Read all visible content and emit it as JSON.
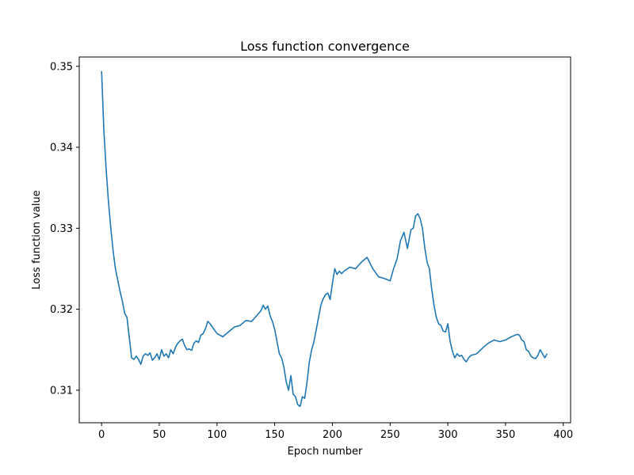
{
  "chart_data": {
    "type": "line",
    "title": "Loss function convergence",
    "xlabel": "Epoch number",
    "ylabel": "Loss function value",
    "xlim": [
      -19.35,
      406.35
    ],
    "ylim": [
      0.30598,
      0.35115
    ],
    "xticks": [
      0,
      50,
      100,
      150,
      200,
      250,
      300,
      350,
      400
    ],
    "yticks": [
      0.31,
      0.32,
      0.33,
      0.34,
      0.35
    ],
    "xtick_labels": [
      "0",
      "50",
      "100",
      "150",
      "200",
      "250",
      "300",
      "350",
      "400"
    ],
    "ytick_labels": [
      "0.31",
      "0.32",
      "0.33",
      "0.34",
      "0.35"
    ],
    "grid": false,
    "legend": "none",
    "series": [
      {
        "color": "#1f77b4",
        "x": [
          0,
          2,
          4,
          6,
          8,
          10,
          12,
          14,
          16,
          18,
          20,
          22,
          24,
          26,
          28,
          30,
          32,
          34,
          36,
          38,
          40,
          42,
          44,
          46,
          48,
          50,
          52,
          54,
          56,
          58,
          60,
          62,
          64,
          66,
          68,
          70,
          72,
          74,
          76,
          78,
          80,
          82,
          84,
          86,
          88,
          90,
          92,
          94,
          96,
          98,
          100,
          105,
          110,
          115,
          120,
          125,
          130,
          135,
          138,
          140,
          142,
          144,
          146,
          148,
          150,
          152,
          154,
          156,
          158,
          160,
          162,
          164,
          166,
          168,
          170,
          172,
          174,
          176,
          178,
          180,
          182,
          184,
          186,
          188,
          190,
          192,
          194,
          196,
          198,
          200,
          202,
          204,
          206,
          208,
          210,
          215,
          220,
          225,
          230,
          235,
          240,
          245,
          250,
          253,
          256,
          259,
          262,
          265,
          268,
          270,
          272,
          274,
          276,
          278,
          280,
          282,
          284,
          286,
          288,
          290,
          292,
          294,
          296,
          298,
          300,
          302,
          304,
          306,
          308,
          310,
          312,
          314,
          316,
          318,
          320,
          325,
          330,
          335,
          340,
          345,
          350,
          355,
          360,
          362,
          364,
          366,
          368,
          370,
          372,
          374,
          376,
          378,
          380,
          382,
          384,
          386
        ],
        "y": [
          0.3494,
          0.342,
          0.3372,
          0.3332,
          0.33,
          0.3272,
          0.325,
          0.3236,
          0.3222,
          0.321,
          0.3195,
          0.319,
          0.3165,
          0.314,
          0.3138,
          0.3142,
          0.3138,
          0.3132,
          0.3142,
          0.3145,
          0.3143,
          0.3146,
          0.3137,
          0.314,
          0.3145,
          0.3138,
          0.315,
          0.3142,
          0.3145,
          0.314,
          0.315,
          0.3145,
          0.3153,
          0.3158,
          0.3161,
          0.3163,
          0.3155,
          0.315,
          0.3151,
          0.3149,
          0.3158,
          0.3161,
          0.3159,
          0.3168,
          0.317,
          0.3176,
          0.3185,
          0.3182,
          0.3178,
          0.3174,
          0.317,
          0.3166,
          0.3172,
          0.3178,
          0.318,
          0.3186,
          0.3185,
          0.3193,
          0.3198,
          0.3205,
          0.32,
          0.3204,
          0.3192,
          0.3185,
          0.3175,
          0.316,
          0.3145,
          0.314,
          0.3128,
          0.311,
          0.31,
          0.3118,
          0.3095,
          0.3092,
          0.3082,
          0.308,
          0.3092,
          0.309,
          0.311,
          0.3135,
          0.315,
          0.316,
          0.3175,
          0.319,
          0.3205,
          0.3213,
          0.3218,
          0.322,
          0.3212,
          0.3232,
          0.325,
          0.3243,
          0.3247,
          0.3244,
          0.3247,
          0.3252,
          0.325,
          0.3258,
          0.3264,
          0.325,
          0.324,
          0.3238,
          0.3235,
          0.325,
          0.3262,
          0.3285,
          0.3295,
          0.3275,
          0.3298,
          0.33,
          0.3315,
          0.3318,
          0.3312,
          0.33,
          0.3276,
          0.3258,
          0.325,
          0.3225,
          0.3205,
          0.319,
          0.3182,
          0.318,
          0.3173,
          0.3172,
          0.3182,
          0.316,
          0.3148,
          0.314,
          0.3145,
          0.3142,
          0.3143,
          0.3138,
          0.3135,
          0.314,
          0.3143,
          0.3145,
          0.3152,
          0.3158,
          0.3162,
          0.316,
          0.3162,
          0.3166,
          0.3169,
          0.3168,
          0.3162,
          0.316,
          0.315,
          0.3148,
          0.3142,
          0.314,
          0.3139,
          0.3143,
          0.315,
          0.3145,
          0.314,
          0.3145
        ]
      }
    ]
  }
}
